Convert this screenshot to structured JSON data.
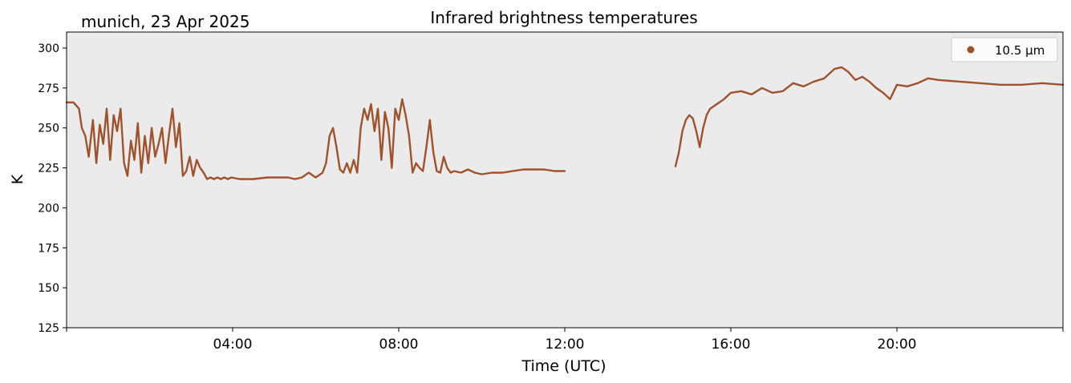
{
  "chart_data": {
    "type": "line",
    "title": "Infrared brightness temperatures",
    "subtitle": "munich, 23 Apr 2025",
    "xlabel": "Time (UTC)",
    "ylabel": "K",
    "xlim": [
      "00:00",
      "24:00"
    ],
    "ylim": [
      125,
      310
    ],
    "x_ticks": [
      "04:00",
      "08:00",
      "12:00",
      "16:00",
      "20:00"
    ],
    "y_ticks": [
      125,
      150,
      175,
      200,
      225,
      250,
      275,
      300
    ],
    "grid": false,
    "legend_position": "top-right",
    "background_color": "#ebebeb",
    "series": [
      {
        "name": "10.5 µm",
        "color": "#a0522d",
        "segments": [
          {
            "x": [
              "00:00",
              "00:10",
              "00:18",
              "00:22",
              "00:27",
              "00:32",
              "00:38",
              "00:43",
              "00:48",
              "00:53",
              "00:58",
              "01:03",
              "01:08",
              "01:13",
              "01:18",
              "01:23",
              "01:28",
              "01:33",
              "01:38",
              "01:43",
              "01:48",
              "01:53",
              "01:58",
              "02:03",
              "02:08",
              "02:13",
              "02:18",
              "02:23",
              "02:28",
              "02:33",
              "02:38",
              "02:43",
              "02:48",
              "02:53",
              "02:58",
              "03:03",
              "03:08",
              "03:13",
              "03:18",
              "03:23",
              "03:28",
              "03:33",
              "03:38",
              "03:43",
              "03:48",
              "03:53",
              "03:58",
              "04:10",
              "04:30",
              "04:50",
              "05:10",
              "05:20",
              "05:30",
              "05:40",
              "05:50",
              "06:00",
              "06:10",
              "06:15",
              "06:20",
              "06:25",
              "06:30",
              "06:35",
              "06:40",
              "06:45",
              "06:50",
              "06:55",
              "07:00",
              "07:05",
              "07:10",
              "07:15",
              "07:20",
              "07:25",
              "07:30",
              "07:35",
              "07:40",
              "07:45",
              "07:50",
              "07:55",
              "08:00",
              "08:05",
              "08:10",
              "08:15",
              "08:20",
              "08:25",
              "08:30",
              "08:35",
              "08:40",
              "08:45",
              "08:50",
              "08:55",
              "09:00",
              "09:05",
              "09:10",
              "09:15",
              "09:20",
              "09:30",
              "09:40",
              "09:50",
              "10:00",
              "10:15",
              "10:30",
              "10:45",
              "11:00",
              "11:15",
              "11:30",
              "11:45",
              "12:00"
            ],
            "y": [
              266,
              266,
              262,
              250,
              245,
              232,
              255,
              228,
              252,
              240,
              262,
              230,
              258,
              248,
              262,
              228,
              220,
              242,
              230,
              253,
              222,
              245,
              228,
              250,
              232,
              240,
              250,
              228,
              246,
              262,
              238,
              253,
              220,
              223,
              232,
              220,
              230,
              225,
              222,
              218,
              219,
              218,
              219,
              218,
              219,
              218,
              219,
              218,
              218,
              219,
              219,
              219,
              218,
              219,
              222,
              219,
              222,
              228,
              245,
              250,
              238,
              224,
              222,
              228,
              222,
              230,
              222,
              250,
              262,
              255,
              265,
              248,
              262,
              230,
              260,
              250,
              225,
              262,
              255,
              268,
              258,
              245,
              222,
              228,
              225,
              223,
              238,
              255,
              235,
              223,
              222,
              232,
              225,
              222,
              223,
              222,
              224,
              222,
              221,
              222,
              222,
              223,
              224,
              224,
              224,
              223,
              223
            ]
          },
          {
            "x": [
              "14:40",
              "14:45",
              "14:50",
              "14:55",
              "15:00",
              "15:05",
              "15:10",
              "15:15",
              "15:20",
              "15:25",
              "15:30",
              "15:40",
              "15:50",
              "16:00",
              "16:15",
              "16:30",
              "16:45",
              "17:00",
              "17:15",
              "17:30",
              "17:45",
              "18:00",
              "18:15",
              "18:30",
              "18:40",
              "18:50",
              "19:00",
              "19:10",
              "19:20",
              "19:30",
              "19:40",
              "19:50",
              "20:00",
              "20:15",
              "20:30",
              "20:45",
              "21:00",
              "21:30",
              "22:00",
              "22:30",
              "23:00",
              "23:30",
              "24:00"
            ],
            "y": [
              226,
              235,
              248,
              255,
              258,
              256,
              248,
              238,
              250,
              258,
              262,
              265,
              268,
              272,
              273,
              271,
              275,
              272,
              273,
              278,
              276,
              279,
              281,
              287,
              288,
              285,
              280,
              282,
              279,
              275,
              272,
              268,
              277,
              276,
              278,
              281,
              280,
              279,
              278,
              277,
              277,
              278,
              277
            ]
          }
        ]
      }
    ]
  }
}
